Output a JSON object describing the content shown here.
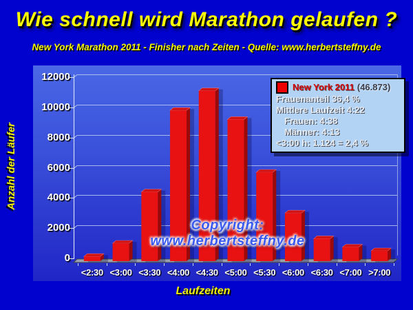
{
  "header": {
    "title": "Wie schnell wird Marathon gelaufen ?",
    "subtitle": "New York Marathon 2011 - Finisher nach Zeiten - Quelle: www.herbertsteffny.de"
  },
  "legend": {
    "series": "New York 2011",
    "total": "(46.873)",
    "stats": [
      "Frauenanteil 36,4 %",
      "Mittlere Laufzeit 4:22",
      "Frauen: 4:38",
      "Männer: 4:13",
      "<3:00 h: 1.124 = 2,4 %"
    ]
  },
  "watermark": {
    "text": "Copyright: www.herbertsteffny.de"
  },
  "chart_data": {
    "type": "bar",
    "title": "Wie schnell wird Marathon gelaufen ?",
    "subtitle": "New York Marathon 2011 - Finisher nach Zeiten - Quelle: www.herbertsteffny.de",
    "categories": [
      "<2:30",
      "<3:00",
      "<3:30",
      "<4:00",
      "<4:30",
      "<5:00",
      "<5:30",
      "<6:00",
      "<6:30",
      "<7:00",
      ">7:00"
    ],
    "values": [
      124,
      1000,
      4400,
      9800,
      11100,
      9200,
      5700,
      3000,
      1300,
      750,
      500
    ],
    "series_name": "New York 2011",
    "total_finishers": "46.873",
    "xlabel": "Laufzeiten",
    "ylabel": "Anzahl der Läufer",
    "ylim": [
      0,
      12000
    ],
    "ytick_step": 2000,
    "grid": true,
    "legend_position": "top-right",
    "bar_color": "#e81212"
  },
  "colors": {
    "background": "#0202ce",
    "panel_top": "#4a68e6",
    "panel_bottom": "#2026c6",
    "title_yellow": "#ffff00",
    "bar_front": "#e81212",
    "bar_side": "#9c0909",
    "bar_top": "#d01212",
    "legend_bg": "#b2d3f4",
    "series_red": "#d40000",
    "floor_gray": "#9aa2ae"
  }
}
